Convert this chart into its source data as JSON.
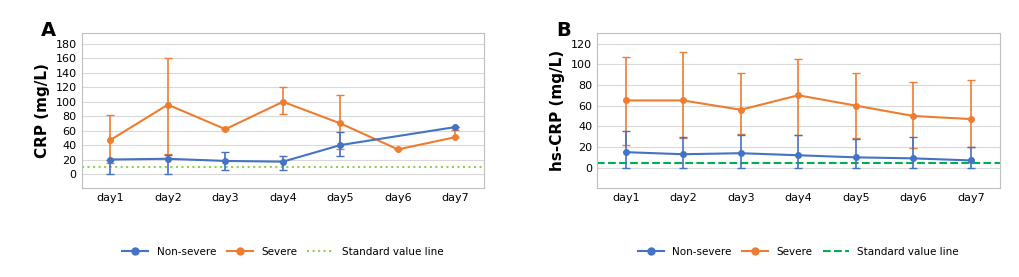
{
  "panel_A": {
    "panel_label": "A",
    "ylabel": "CRP (mg/L)",
    "days": [
      "day1",
      "day2",
      "day3",
      "day4",
      "day5",
      "day6",
      "day7"
    ],
    "non_severe_mean": [
      20,
      21,
      18,
      17,
      40,
      null,
      65
    ],
    "non_severe_err_low": [
      20,
      21,
      13,
      12,
      15,
      null,
      0
    ],
    "non_severe_err_high": [
      0,
      5,
      12,
      8,
      18,
      null,
      0
    ],
    "severe_mean": [
      47,
      96,
      62,
      100,
      70,
      34,
      51
    ],
    "severe_err_low": [
      32,
      68,
      0,
      17,
      35,
      0,
      0
    ],
    "severe_err_high": [
      35,
      65,
      0,
      20,
      40,
      0,
      10
    ],
    "standard_value": 10,
    "standard_linestyle": "dotted",
    "standard_color": "#92d050",
    "ylim": [
      -20,
      195
    ],
    "yticks": [
      0,
      20,
      40,
      60,
      80,
      100,
      120,
      140,
      160,
      180
    ],
    "non_severe_color": "#4472c4",
    "severe_color": "#ed7d31"
  },
  "panel_B": {
    "panel_label": "B",
    "ylabel": "hs-CRP (mg/L)",
    "days": [
      "day1",
      "day2",
      "day3",
      "day4",
      "day5",
      "day6",
      "day7"
    ],
    "non_severe_mean": [
      15,
      13,
      14,
      12,
      10,
      9,
      7
    ],
    "non_severe_err_low": [
      15,
      13,
      14,
      12,
      10,
      9,
      7
    ],
    "non_severe_err_high": [
      20,
      17,
      18,
      20,
      18,
      21,
      13
    ],
    "severe_mean": [
      65,
      65,
      56,
      70,
      60,
      50,
      47
    ],
    "severe_err_low": [
      43,
      36,
      23,
      38,
      31,
      31,
      27
    ],
    "severe_err_high": [
      42,
      47,
      36,
      35,
      32,
      33,
      38
    ],
    "standard_value": 5,
    "standard_linestyle": "dashed",
    "standard_color": "#00b050",
    "ylim": [
      -20,
      130
    ],
    "yticks": [
      0,
      20,
      40,
      60,
      80,
      100,
      120
    ],
    "non_severe_color": "#4472c4",
    "severe_color": "#ed7d31"
  },
  "background_color": "#ffffff",
  "plot_bg_color": "#ffffff",
  "grid_color": "#d9d9d9",
  "spine_color": "#bfbfbf",
  "legend_labels": [
    "Non-severe",
    "Severe",
    "Standard value line"
  ],
  "tick_fontsize": 8,
  "ylabel_fontsize": 11,
  "panel_label_fontsize": 14
}
